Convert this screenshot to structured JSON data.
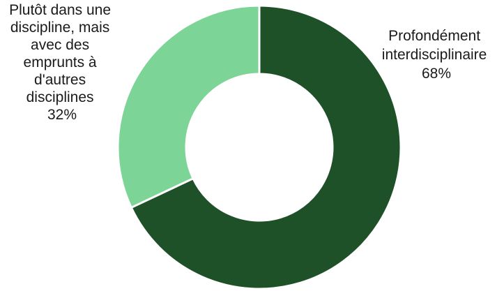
{
  "chart_data": {
    "type": "pie",
    "variant": "donut",
    "title": "",
    "slices": [
      {
        "label_lines": [
          "Profondément",
          "interdisciplinaire",
          "68%"
        ],
        "value": 68,
        "color": "#1e5128"
      },
      {
        "label_lines": [
          "Plutôt dans une",
          "discipline, mais",
          "avec des",
          "emprunts à",
          "d'autres",
          "disciplines",
          "32%"
        ],
        "value": 32,
        "color": "#7dd497"
      }
    ]
  }
}
